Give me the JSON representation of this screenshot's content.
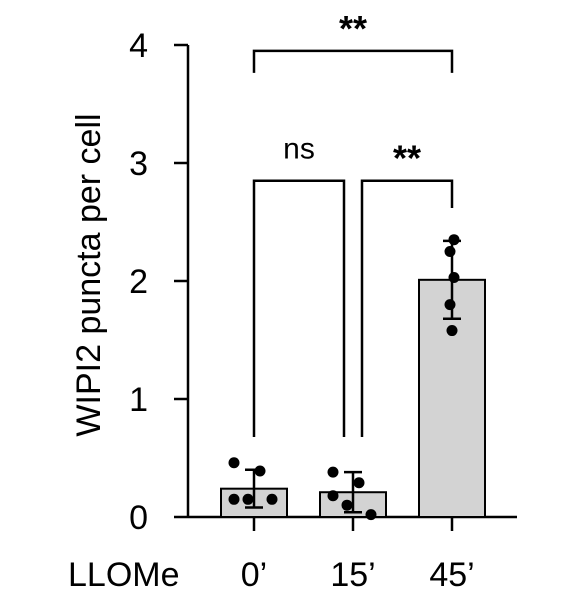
{
  "chart_data": {
    "type": "bar",
    "title": "",
    "ylabel": "WIPI2 puncta per cell",
    "xlabel": "",
    "group_label": "LLOMe",
    "categories": [
      "0’",
      "15’",
      "45’"
    ],
    "values": [
      0.24,
      0.21,
      2.01
    ],
    "error": [
      0.16,
      0.17,
      0.33
    ],
    "points": [
      [
        0.46,
        0.39,
        0.15,
        0.15,
        0.15
      ],
      [
        0.38,
        0.29,
        0.18,
        0.1,
        0.02
      ],
      [
        2.35,
        2.25,
        2.03,
        1.8,
        1.58
      ]
    ],
    "ylim": [
      0,
      4
    ],
    "yticks": [
      0,
      1,
      2,
      3,
      4
    ],
    "grid": false,
    "bar_color": "#d3d3d3",
    "significance": [
      {
        "from": 0,
        "to": 2,
        "label": "**",
        "y": 3.95
      },
      {
        "from": 0,
        "to": 1,
        "label": "ns",
        "y": 2.85
      },
      {
        "from": 1,
        "to": 2,
        "label": "**",
        "y": 2.85
      }
    ]
  }
}
